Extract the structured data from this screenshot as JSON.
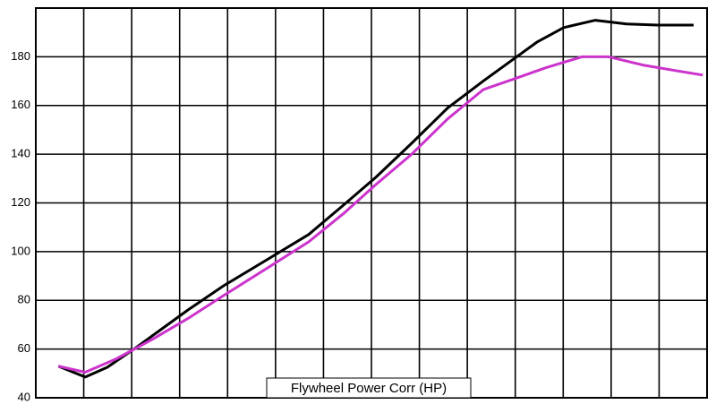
{
  "chart_data": {
    "type": "line",
    "title": "Flywheel Power Corr (HP)",
    "xlim": [
      0,
      14
    ],
    "xticks": [
      0,
      1,
      2,
      3,
      4,
      5,
      6,
      7,
      8,
      9,
      10,
      11,
      12,
      13,
      14
    ],
    "ylim": [
      40,
      200
    ],
    "yticks": [
      40,
      60,
      80,
      100,
      120,
      140,
      160,
      180
    ],
    "grid": true,
    "series": [
      {
        "color": "#000000",
        "x": [
          0.47,
          1.03,
          1.49,
          2.05,
          2.61,
          3.17,
          3.92,
          4.85,
          5.69,
          6.44,
          7.09,
          7.84,
          8.59,
          9.33,
          9.89,
          10.45,
          11.01,
          11.67,
          12.32,
          12.97,
          13.72
        ],
        "values": [
          53,
          48.5,
          52.5,
          60,
          68,
          76,
          86,
          97,
          107,
          119.5,
          130.5,
          144.5,
          159,
          170,
          178,
          186,
          192,
          195,
          193.5,
          193,
          193
        ]
      },
      {
        "color": "#cc33cc",
        "x": [
          0.47,
          1.03,
          1.68,
          2.43,
          3.17,
          3.92,
          4.85,
          5.69,
          6.44,
          7.09,
          7.84,
          8.59,
          9.33,
          9.99,
          10.64,
          11.39,
          11.95,
          12.69,
          13.44,
          13.91
        ],
        "values": [
          53,
          50.5,
          56,
          64,
          72.5,
          82,
          93.5,
          104,
          116,
          127.5,
          140,
          154.5,
          166.5,
          171,
          175.5,
          180,
          180,
          176.5,
          174,
          172.5
        ]
      }
    ]
  }
}
